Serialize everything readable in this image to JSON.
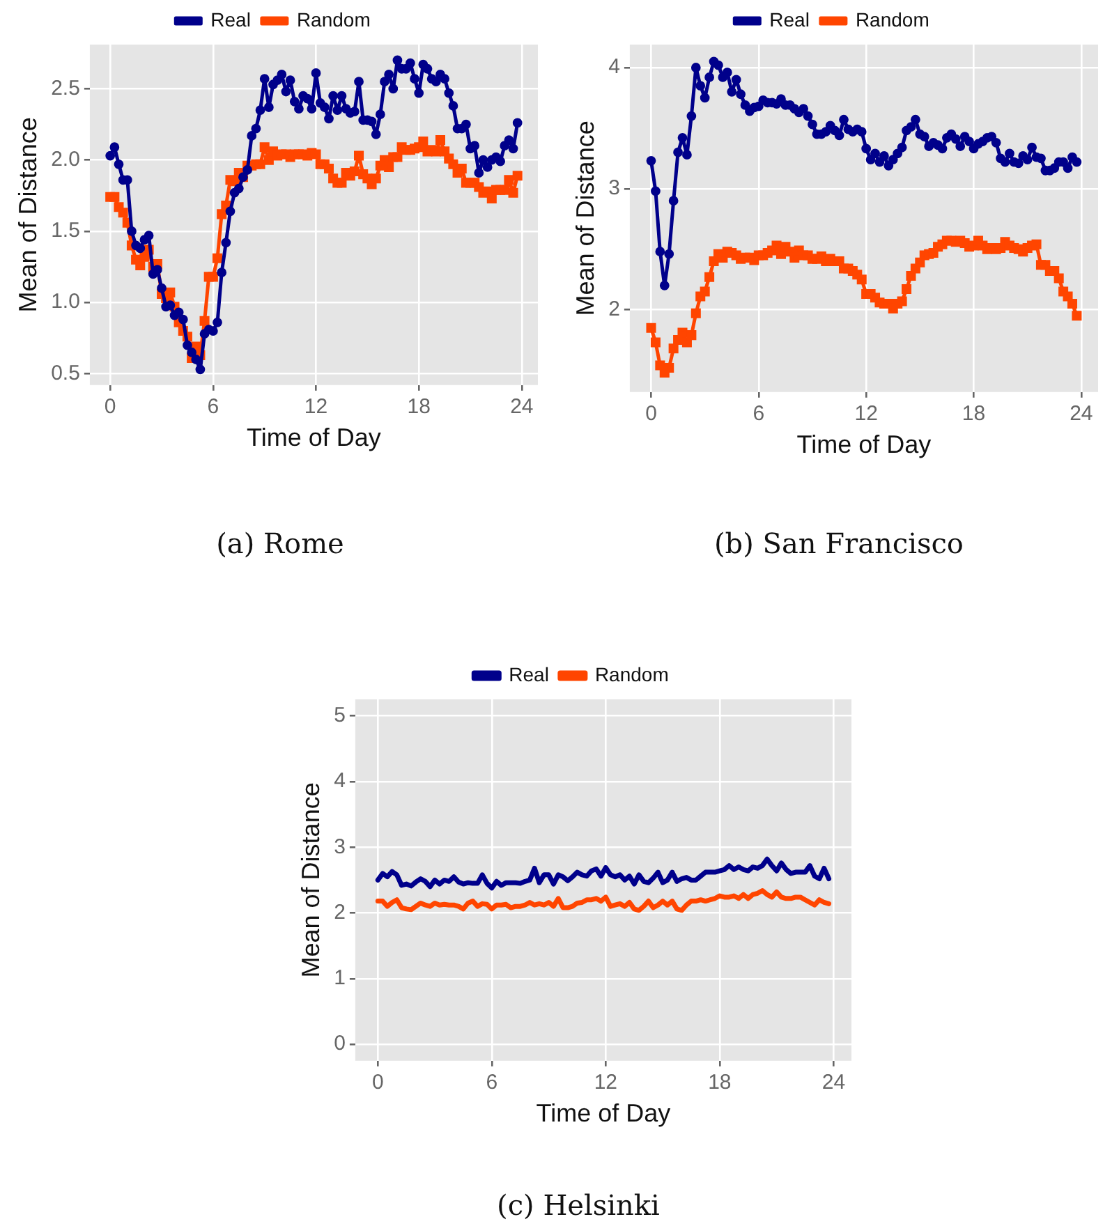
{
  "chart_data": [
    {
      "type": "line",
      "title": "(a)  Rome",
      "xlabel": "Time of Day",
      "ylabel": "Mean of Distance",
      "legend": "top",
      "grid": true,
      "line_style": "solid",
      "x": [
        0,
        0.25,
        0.5,
        0.75,
        1,
        1.25,
        1.5,
        1.75,
        2,
        2.25,
        2.5,
        2.75,
        3,
        3.25,
        3.5,
        3.75,
        4,
        4.25,
        4.5,
        4.75,
        5,
        5.25,
        5.5,
        5.75,
        6,
        6.25,
        6.5,
        6.75,
        7,
        7.25,
        7.5,
        7.75,
        8,
        8.25,
        8.5,
        8.75,
        9,
        9.25,
        9.5,
        9.75,
        10,
        10.25,
        10.5,
        10.75,
        11,
        11.25,
        11.5,
        11.75,
        12,
        12.25,
        12.5,
        12.75,
        13,
        13.25,
        13.5,
        13.75,
        14,
        14.25,
        14.5,
        14.75,
        15,
        15.25,
        15.5,
        15.75,
        16,
        16.25,
        16.5,
        16.75,
        17,
        17.25,
        17.5,
        17.75,
        18,
        18.25,
        18.5,
        18.75,
        19,
        19.25,
        19.5,
        19.75,
        20,
        20.25,
        20.5,
        20.75,
        21,
        21.25,
        21.5,
        21.75,
        22,
        22.25,
        22.5,
        22.75,
        23,
        23.25,
        23.5,
        23.75
      ],
      "xlim": [
        -1.19,
        24.94
      ],
      "xticks": [
        0,
        6,
        12,
        18,
        24
      ],
      "ylim": [
        0.42,
        2.81
      ],
      "yticks": [
        0.5,
        {
          "value": 1,
          "label": "1.0"
        },
        1.5,
        {
          "value": 2,
          "label": "2.0"
        },
        2.5
      ],
      "series": [
        {
          "name": "Real",
          "color": "#00008b",
          "marker": "circle",
          "values": [
            2.03,
            2.09,
            1.97,
            1.86,
            1.86,
            1.5,
            1.4,
            1.38,
            1.44,
            1.47,
            1.2,
            1.23,
            1.1,
            0.97,
            0.98,
            0.91,
            0.93,
            0.88,
            0.7,
            0.65,
            0.6,
            0.53,
            0.78,
            0.81,
            0.8,
            0.86,
            1.21,
            1.42,
            1.64,
            1.77,
            1.8,
            1.88,
            1.93,
            2.17,
            2.22,
            2.35,
            2.57,
            2.37,
            2.53,
            2.56,
            2.6,
            2.48,
            2.56,
            2.41,
            2.36,
            2.45,
            2.43,
            2.36,
            2.61,
            2.4,
            2.37,
            2.29,
            2.45,
            2.35,
            2.45,
            2.36,
            2.33,
            2.34,
            2.55,
            2.28,
            2.28,
            2.27,
            2.18,
            2.32,
            2.55,
            2.6,
            2.5,
            2.7,
            2.64,
            2.64,
            2.68,
            2.57,
            2.47,
            2.67,
            2.64,
            2.57,
            2.55,
            2.6,
            2.57,
            2.47,
            2.38,
            2.22,
            2.22,
            2.25,
            2.08,
            2.1,
            1.91,
            2.0,
            1.95,
            2.0,
            2.02,
            1.99,
            2.1,
            2.14,
            2.08,
            2.26
          ]
        },
        {
          "name": "Random",
          "color": "#ff4500",
          "marker": "square",
          "values": [
            1.74,
            1.74,
            1.67,
            1.63,
            1.56,
            1.4,
            1.3,
            1.26,
            1.32,
            1.37,
            1.25,
            1.27,
            1.06,
            1.03,
            1.07,
            0.97,
            0.86,
            0.8,
            0.76,
            0.61,
            0.69,
            0.63,
            0.87,
            1.18,
            1.18,
            1.31,
            1.62,
            1.68,
            1.86,
            1.85,
            1.91,
            1.88,
            1.96,
            1.96,
            1.97,
            1.97,
            2.09,
            2.0,
            2.06,
            2.03,
            2.04,
            2.04,
            2.02,
            2.04,
            2.04,
            2.04,
            2.03,
            2.05,
            2.04,
            1.97,
            1.97,
            1.94,
            1.87,
            1.84,
            1.84,
            1.91,
            1.89,
            1.92,
            2.03,
            1.9,
            1.87,
            1.83,
            1.87,
            1.96,
            2.0,
            1.95,
            2.02,
            2.02,
            2.09,
            2.07,
            2.07,
            2.08,
            2.09,
            2.13,
            2.06,
            2.07,
            2.06,
            2.14,
            2.06,
            2.01,
            1.97,
            1.91,
            1.94,
            1.84,
            1.84,
            1.84,
            1.81,
            1.77,
            1.78,
            1.73,
            1.79,
            1.79,
            1.79,
            1.86,
            1.77,
            1.89
          ]
        }
      ]
    },
    {
      "type": "line",
      "title": "(b)  San Francisco",
      "xlabel": "Time of Day",
      "ylabel": "Mean of Distance",
      "legend": "top",
      "grid": true,
      "line_style": "solid",
      "x": [
        0,
        0.25,
        0.5,
        0.75,
        1,
        1.25,
        1.5,
        1.75,
        2,
        2.25,
        2.5,
        2.75,
        3,
        3.25,
        3.5,
        3.75,
        4,
        4.25,
        4.5,
        4.75,
        5,
        5.25,
        5.5,
        5.75,
        6,
        6.25,
        6.5,
        6.75,
        7,
        7.25,
        7.5,
        7.75,
        8,
        8.25,
        8.5,
        8.75,
        9,
        9.25,
        9.5,
        9.75,
        10,
        10.25,
        10.5,
        10.75,
        11,
        11.25,
        11.5,
        11.75,
        12,
        12.25,
        12.5,
        12.75,
        13,
        13.25,
        13.5,
        13.75,
        14,
        14.25,
        14.5,
        14.75,
        15,
        15.25,
        15.5,
        15.75,
        16,
        16.25,
        16.5,
        16.75,
        17,
        17.25,
        17.5,
        17.75,
        18,
        18.25,
        18.5,
        18.75,
        19,
        19.25,
        19.5,
        19.75,
        20,
        20.25,
        20.5,
        20.75,
        21,
        21.25,
        21.5,
        21.75,
        22,
        22.25,
        22.5,
        22.75,
        23,
        23.25,
        23.5,
        23.75
      ],
      "xlim": [
        -1.19,
        24.94
      ],
      "xticks": [
        0,
        6,
        12,
        18,
        24
      ],
      "ylim": [
        1.32,
        4.19
      ],
      "yticks": [
        2,
        3,
        4
      ],
      "series": [
        {
          "name": "Real",
          "color": "#00008b",
          "marker": "circle",
          "values": [
            3.23,
            2.98,
            2.48,
            2.2,
            2.46,
            2.9,
            3.3,
            3.42,
            3.28,
            3.6,
            4.0,
            3.85,
            3.75,
            3.92,
            4.05,
            4.02,
            3.92,
            3.96,
            3.8,
            3.9,
            3.78,
            3.69,
            3.64,
            3.67,
            3.68,
            3.73,
            3.71,
            3.71,
            3.7,
            3.74,
            3.69,
            3.69,
            3.66,
            3.63,
            3.66,
            3.6,
            3.53,
            3.45,
            3.45,
            3.47,
            3.52,
            3.48,
            3.44,
            3.57,
            3.49,
            3.47,
            3.49,
            3.47,
            3.33,
            3.24,
            3.29,
            3.22,
            3.27,
            3.19,
            3.24,
            3.29,
            3.34,
            3.48,
            3.51,
            3.57,
            3.45,
            3.43,
            3.35,
            3.38,
            3.36,
            3.33,
            3.42,
            3.45,
            3.41,
            3.35,
            3.43,
            3.39,
            3.33,
            3.37,
            3.39,
            3.42,
            3.43,
            3.38,
            3.25,
            3.22,
            3.29,
            3.22,
            3.21,
            3.27,
            3.24,
            3.34,
            3.26,
            3.25,
            3.15,
            3.15,
            3.17,
            3.22,
            3.22,
            3.17,
            3.26,
            3.22
          ]
        },
        {
          "name": "Random",
          "color": "#ff4500",
          "marker": "square",
          "values": [
            1.85,
            1.73,
            1.54,
            1.48,
            1.52,
            1.68,
            1.75,
            1.81,
            1.73,
            1.79,
            1.97,
            2.11,
            2.15,
            2.27,
            2.4,
            2.46,
            2.43,
            2.48,
            2.47,
            2.45,
            2.42,
            2.43,
            2.43,
            2.41,
            2.45,
            2.45,
            2.47,
            2.49,
            2.53,
            2.46,
            2.52,
            2.48,
            2.43,
            2.49,
            2.45,
            2.45,
            2.42,
            2.42,
            2.44,
            2.4,
            2.42,
            2.4,
            2.4,
            2.34,
            2.34,
            2.32,
            2.29,
            2.25,
            2.13,
            2.13,
            2.1,
            2.06,
            2.05,
            2.05,
            2.01,
            2.05,
            2.07,
            2.17,
            2.28,
            2.34,
            2.39,
            2.45,
            2.46,
            2.47,
            2.52,
            2.54,
            2.57,
            2.57,
            2.56,
            2.57,
            2.55,
            2.52,
            2.53,
            2.57,
            2.53,
            2.5,
            2.51,
            2.5,
            2.51,
            2.56,
            2.53,
            2.51,
            2.5,
            2.48,
            2.51,
            2.53,
            2.54,
            2.37,
            2.37,
            2.32,
            2.32,
            2.26,
            2.15,
            2.11,
            2.05,
            1.95
          ]
        }
      ]
    },
    {
      "type": "line",
      "title": "(c)  Helsinki",
      "xlabel": "Time of Day",
      "ylabel": "Mean of Distance",
      "legend": "top",
      "grid": true,
      "line_style": "solid",
      "x": [
        0,
        0.25,
        0.5,
        0.75,
        1,
        1.25,
        1.5,
        1.75,
        2,
        2.25,
        2.5,
        2.75,
        3,
        3.25,
        3.5,
        3.75,
        4,
        4.25,
        4.5,
        4.75,
        5,
        5.25,
        5.5,
        5.75,
        6,
        6.25,
        6.5,
        6.75,
        7,
        7.25,
        7.5,
        7.75,
        8,
        8.25,
        8.5,
        8.75,
        9,
        9.25,
        9.5,
        9.75,
        10,
        10.25,
        10.5,
        10.75,
        11,
        11.25,
        11.5,
        11.75,
        12,
        12.25,
        12.5,
        12.75,
        13,
        13.25,
        13.5,
        13.75,
        14,
        14.25,
        14.5,
        14.75,
        15,
        15.25,
        15.5,
        15.75,
        16,
        16.25,
        16.5,
        16.75,
        17,
        17.25,
        17.5,
        17.75,
        18,
        18.25,
        18.5,
        18.75,
        19,
        19.25,
        19.5,
        19.75,
        20,
        20.25,
        20.5,
        20.75,
        21,
        21.25,
        21.5,
        21.75,
        22,
        22.25,
        22.5,
        22.75,
        23,
        23.25,
        23.5,
        23.75
      ],
      "xlim": [
        -1.19,
        24.94
      ],
      "xticks": [
        0,
        6,
        12,
        18,
        24
      ],
      "ylim": [
        -0.25,
        5.25
      ],
      "yticks": [
        0,
        1,
        2,
        3,
        4,
        5
      ],
      "series": [
        {
          "name": "Real",
          "color": "#00008b",
          "marker": "none",
          "values": [
            2.5,
            2.6,
            2.55,
            2.63,
            2.58,
            2.42,
            2.44,
            2.41,
            2.47,
            2.52,
            2.48,
            2.4,
            2.5,
            2.44,
            2.5,
            2.48,
            2.55,
            2.47,
            2.44,
            2.46,
            2.45,
            2.45,
            2.58,
            2.45,
            2.38,
            2.48,
            2.42,
            2.46,
            2.46,
            2.46,
            2.45,
            2.48,
            2.5,
            2.68,
            2.46,
            2.58,
            2.58,
            2.44,
            2.58,
            2.55,
            2.49,
            2.55,
            2.62,
            2.58,
            2.56,
            2.64,
            2.67,
            2.56,
            2.69,
            2.58,
            2.55,
            2.58,
            2.5,
            2.56,
            2.44,
            2.58,
            2.48,
            2.46,
            2.53,
            2.62,
            2.46,
            2.5,
            2.62,
            2.48,
            2.52,
            2.54,
            2.5,
            2.5,
            2.56,
            2.62,
            2.62,
            2.62,
            2.64,
            2.66,
            2.72,
            2.66,
            2.7,
            2.66,
            2.64,
            2.7,
            2.68,
            2.72,
            2.82,
            2.72,
            2.64,
            2.76,
            2.66,
            2.6,
            2.62,
            2.62,
            2.62,
            2.72,
            2.56,
            2.52,
            2.68,
            2.52
          ]
        },
        {
          "name": "Random",
          "color": "#ff4500",
          "marker": "none",
          "values": [
            2.18,
            2.18,
            2.1,
            2.16,
            2.2,
            2.08,
            2.06,
            2.05,
            2.1,
            2.15,
            2.12,
            2.1,
            2.15,
            2.12,
            2.13,
            2.12,
            2.12,
            2.1,
            2.06,
            2.15,
            2.18,
            2.1,
            2.14,
            2.13,
            2.06,
            2.12,
            2.12,
            2.13,
            2.08,
            2.1,
            2.1,
            2.12,
            2.16,
            2.12,
            2.14,
            2.12,
            2.16,
            2.1,
            2.22,
            2.08,
            2.08,
            2.1,
            2.15,
            2.16,
            2.2,
            2.2,
            2.22,
            2.18,
            2.24,
            2.1,
            2.12,
            2.14,
            2.1,
            2.16,
            2.06,
            2.04,
            2.1,
            2.18,
            2.08,
            2.12,
            2.18,
            2.12,
            2.18,
            2.06,
            2.04,
            2.12,
            2.18,
            2.18,
            2.2,
            2.18,
            2.2,
            2.22,
            2.26,
            2.24,
            2.24,
            2.26,
            2.22,
            2.28,
            2.22,
            2.28,
            2.3,
            2.34,
            2.28,
            2.24,
            2.32,
            2.24,
            2.22,
            2.22,
            2.24,
            2.24,
            2.2,
            2.16,
            2.12,
            2.2,
            2.16,
            2.14
          ]
        }
      ]
    }
  ]
}
